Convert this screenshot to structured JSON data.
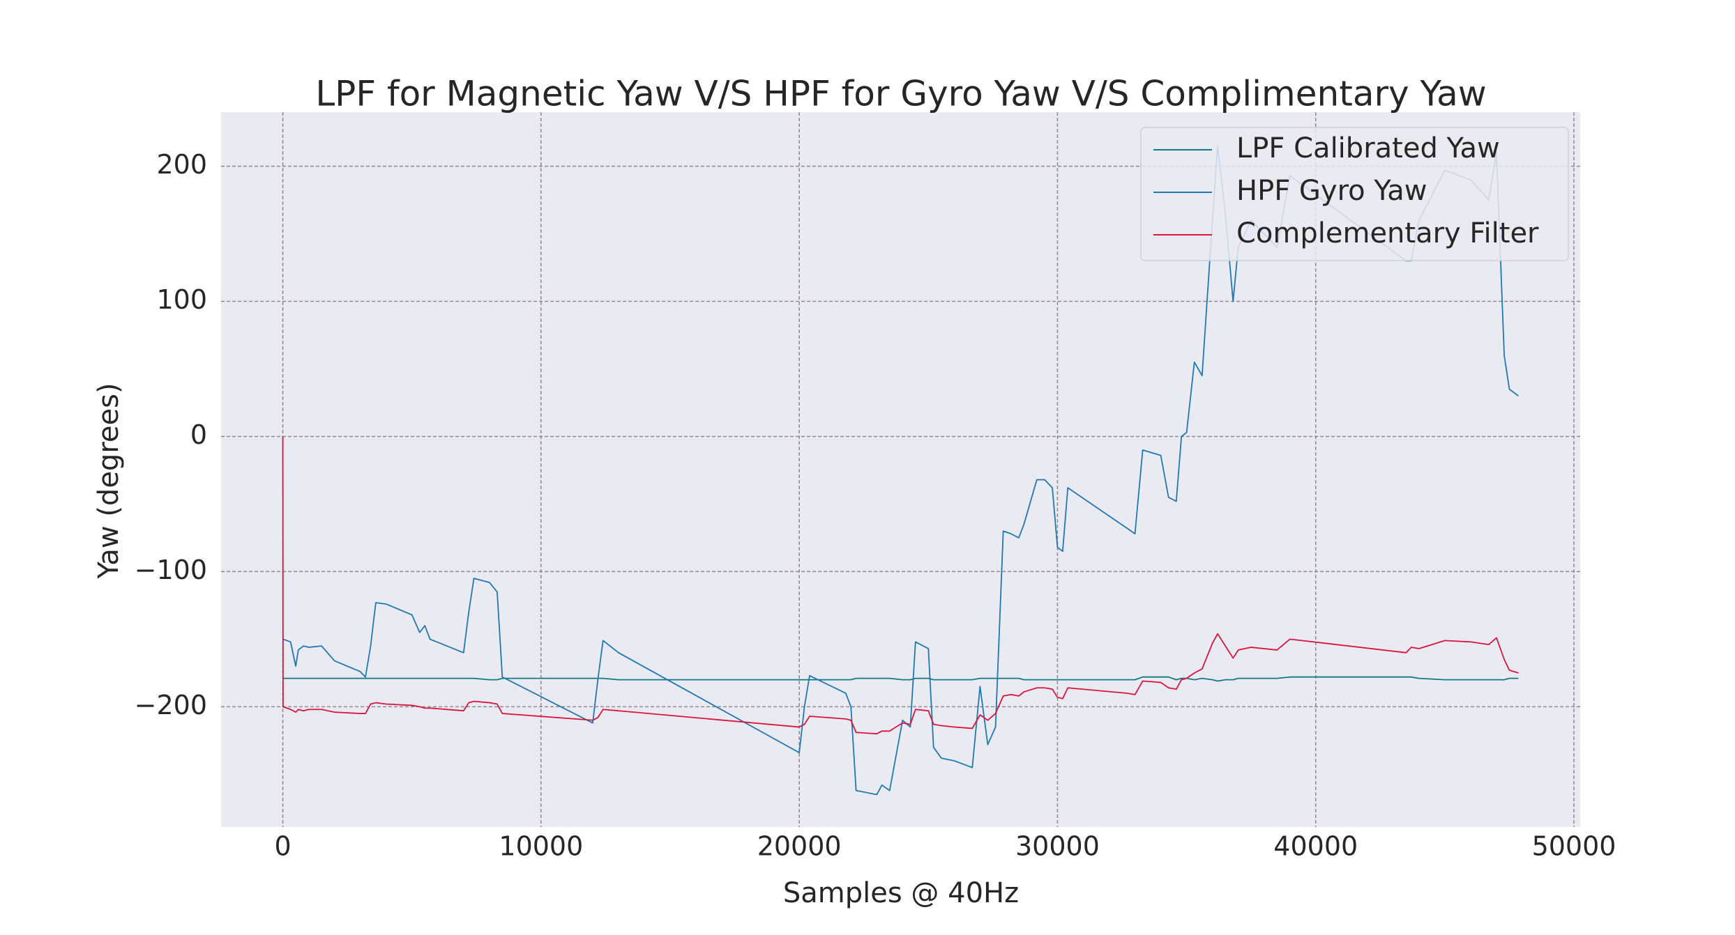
{
  "chart_data": {
    "type": "line",
    "title": "LPF for Magnetic Yaw V/S HPF for Gyro Yaw V/S  Complimentary Yaw",
    "xlabel": "Samples @ 40Hz",
    "ylabel": "Yaw (degrees)",
    "x": [
      0,
      10,
      300,
      500,
      600,
      800,
      1000,
      1500,
      2000,
      3000,
      3200,
      3400,
      3600,
      4000,
      5000,
      5300,
      5500,
      5700,
      7000,
      7200,
      7400,
      8000,
      8300,
      8500,
      12000,
      12200,
      12400,
      13000,
      20000,
      20200,
      20400,
      21800,
      22000,
      22200,
      23000,
      23200,
      23500,
      24000,
      24300,
      24500,
      25000,
      25200,
      25500,
      26000,
      26700,
      27000,
      27300,
      27600,
      27900,
      28200,
      28500,
      28700,
      29200,
      29500,
      29800,
      30000,
      30200,
      30400,
      32700,
      33000,
      33300,
      34000,
      34300,
      34600,
      34800,
      35000,
      35300,
      35600,
      36000,
      36200,
      36500,
      36800,
      37000,
      37500,
      38500,
      39000,
      43500,
      43700,
      44000,
      45000,
      46000,
      46700,
      47000,
      47300,
      47500,
      47850
    ],
    "series": [
      {
        "name": "LPF Calibrated Yaw",
        "color": "#117a80",
        "values": [
          -179,
          -179,
          -179,
          -179,
          -179,
          -179,
          -179,
          -179,
          -179,
          -179,
          -179,
          -179,
          -179,
          -179,
          -179,
          -179,
          -179,
          -179,
          -179,
          -179,
          -179,
          -180,
          -180,
          -179,
          -179,
          -179,
          -179,
          -180,
          -180,
          -180,
          -180,
          -180,
          -180,
          -179,
          -179,
          -179,
          -179,
          -180,
          -180,
          -179,
          -179,
          -180,
          -180,
          -180,
          -180,
          -179,
          -179,
          -179,
          -179,
          -179,
          -179,
          -180,
          -180,
          -180,
          -180,
          -180,
          -180,
          -180,
          -180,
          -180,
          -178,
          -178,
          -178,
          -180,
          -179,
          -179,
          -180,
          -179,
          -180,
          -181,
          -180,
          -180,
          -179,
          -179,
          -179,
          -178,
          -178,
          -178,
          -179,
          -180,
          -180,
          -180,
          -180,
          -180,
          -179,
          -179
        ]
      },
      {
        "name": "HPF Gyro Yaw",
        "color": "#1f77b4",
        "values": [
          -150,
          -150,
          -152,
          -170,
          -158,
          -155,
          -156,
          -155,
          -166,
          -174,
          -178,
          -155,
          -123,
          -124,
          -132,
          -145,
          -140,
          -150,
          -160,
          -130,
          -105,
          -108,
          -115,
          -178,
          -212,
          -180,
          -151,
          -160,
          -234,
          -200,
          -177,
          -190,
          -200,
          -262,
          -265,
          -258,
          -262,
          -210,
          -215,
          -152,
          -157,
          -230,
          -238,
          -240,
          -245,
          -185,
          -228,
          -215,
          -70,
          -72,
          -75,
          -65,
          -32,
          -32,
          -38,
          -82,
          -85,
          -38,
          -68,
          -72,
          -10,
          -14,
          -45,
          -48,
          0,
          3,
          55,
          45,
          160,
          215,
          165,
          100,
          140,
          160,
          140,
          193,
          130,
          130,
          160,
          197,
          190,
          175,
          210,
          60,
          35,
          30
        ]
      },
      {
        "name": "Complementary Filter",
        "color": "#dc143c",
        "values": [
          0,
          -200,
          -202,
          -204,
          -202,
          -203,
          -202,
          -202,
          -204,
          -205,
          -205,
          -198,
          -197,
          -198,
          -199,
          -200,
          -201,
          -201,
          -203,
          -197,
          -196,
          -197,
          -198,
          -205,
          -210,
          -208,
          -202,
          -203,
          -215,
          -213,
          -207,
          -209,
          -210,
          -219,
          -220,
          -218,
          -218,
          -212,
          -213,
          -202,
          -203,
          -213,
          -214,
          -215,
          -216,
          -206,
          -210,
          -205,
          -192,
          -191,
          -192,
          -189,
          -186,
          -186,
          -187,
          -193,
          -194,
          -186,
          -190,
          -191,
          -181,
          -182,
          -186,
          -187,
          -180,
          -179,
          -175,
          -172,
          -153,
          -146,
          -155,
          -164,
          -158,
          -156,
          -158,
          -150,
          -160,
          -156,
          -157,
          -151,
          -152,
          -154,
          -149,
          -165,
          -173,
          -175
        ]
      }
    ],
    "xlim": [
      -2392,
      50242
    ],
    "ylim": [
      -289,
      240
    ],
    "xticks": [
      0,
      10000,
      20000,
      30000,
      40000,
      50000
    ],
    "yticks": [
      {
        "value": -200,
        "label": "−200"
      },
      {
        "value": -100,
        "label": "−100"
      },
      0,
      100,
      200
    ],
    "grid": true,
    "legend": "upper right"
  }
}
